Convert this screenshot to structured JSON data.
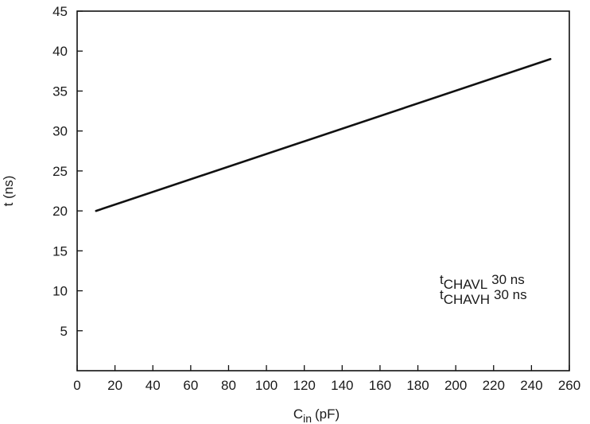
{
  "chart_data": {
    "type": "line",
    "title": "",
    "xlabel": {
      "main": "C",
      "sub": "in",
      "unit": "(pF)"
    },
    "ylabel": "t (ns)",
    "xlim": [
      0,
      260
    ],
    "ylim": [
      0,
      45
    ],
    "xticks": [
      "0",
      "20",
      "40",
      "60",
      "80",
      "100",
      "120",
      "140",
      "160",
      "180",
      "200",
      "220",
      "240",
      "260"
    ],
    "yticks": [
      "5",
      "10",
      "15",
      "20",
      "25",
      "30",
      "35",
      "40",
      "45"
    ],
    "grid": false,
    "series": [
      {
        "x": [
          10,
          250
        ],
        "y": [
          20,
          39
        ]
      }
    ],
    "annotations": [
      {
        "sub": "CHAVL",
        "text": "30 ns"
      },
      {
        "sub": "CHAVH",
        "text": "30 ns"
      }
    ],
    "annotation_prefix": "t",
    "colors": {
      "line": "#111111",
      "axis": "#111111",
      "text": "#1a1a1a"
    }
  }
}
